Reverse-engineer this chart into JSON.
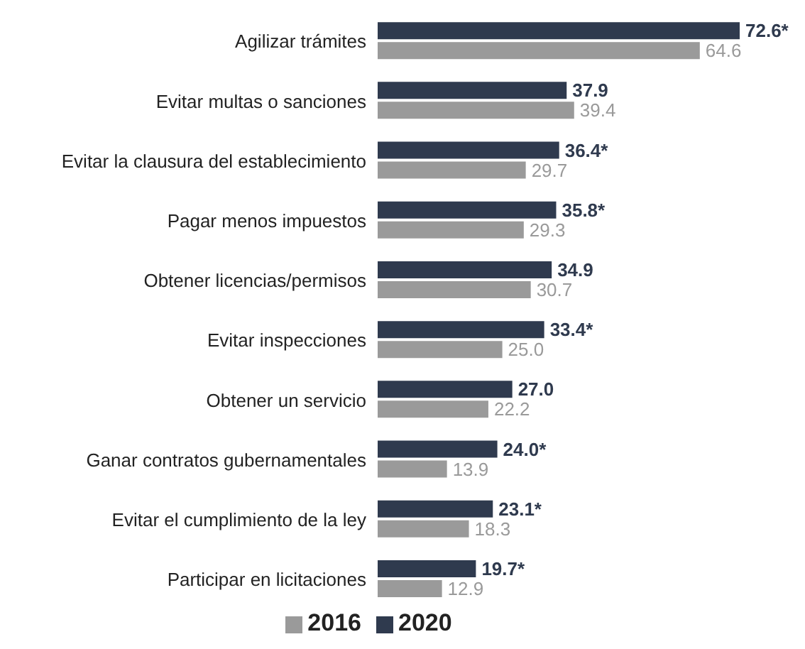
{
  "chart_data": {
    "type": "bar",
    "orientation": "horizontal",
    "legend": "bottom",
    "categories": [
      "Agilizar trámites",
      "Evitar multas o sanciones",
      "Evitar la clausura del establecimiento",
      "Pagar menos impuestos",
      "Obtener licencias/permisos",
      "Evitar inspecciones",
      "Obtener un servicio",
      "Ganar contratos gubernamentales",
      "Evitar el cumplimiento de la ley",
      "Participar en licitaciones"
    ],
    "series": [
      {
        "name": "2020",
        "color": "#2f3a4e",
        "values": [
          72.6,
          37.9,
          36.4,
          35.8,
          34.9,
          33.4,
          27.0,
          24.0,
          23.1,
          19.7
        ],
        "value_labels": [
          "72.6*",
          "37.9",
          "36.4*",
          "35.8*",
          "34.9",
          "33.4*",
          "27.0",
          "24.0*",
          "23.1*",
          "19.7*"
        ]
      },
      {
        "name": "2016",
        "color": "#9a9a9a",
        "values": [
          64.6,
          39.4,
          29.7,
          29.3,
          30.7,
          25.0,
          22.2,
          13.9,
          18.3,
          12.9
        ],
        "value_labels": [
          "64.6",
          "39.4",
          "29.7",
          "29.3",
          "30.7",
          "25.0",
          "22.2",
          "13.9",
          "18.3",
          "12.9"
        ]
      }
    ]
  }
}
